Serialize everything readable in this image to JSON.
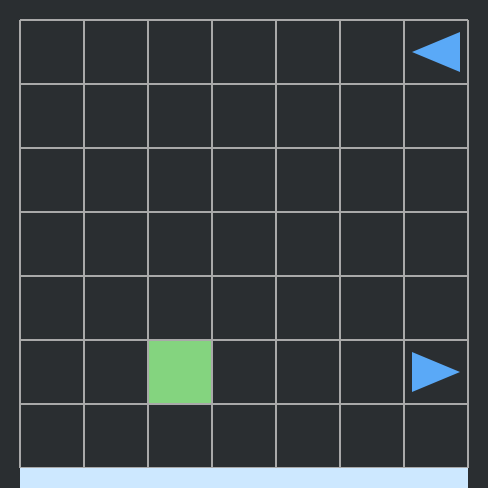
{
  "grid": {
    "rows": 7,
    "cols": 7
  },
  "colors": {
    "background": "#2a2e31",
    "grid_line": "#a9a9a9",
    "goal": "#84d47f",
    "agent": "#5aa9f7",
    "footer": "#cde8ff"
  },
  "goals": [
    {
      "row": 5,
      "col": 2
    }
  ],
  "agents": [
    {
      "row": 0,
      "col": 6,
      "direction": "left",
      "icon": "triangle-left-icon"
    },
    {
      "row": 5,
      "col": 6,
      "direction": "right",
      "icon": "triangle-right-icon"
    }
  ]
}
